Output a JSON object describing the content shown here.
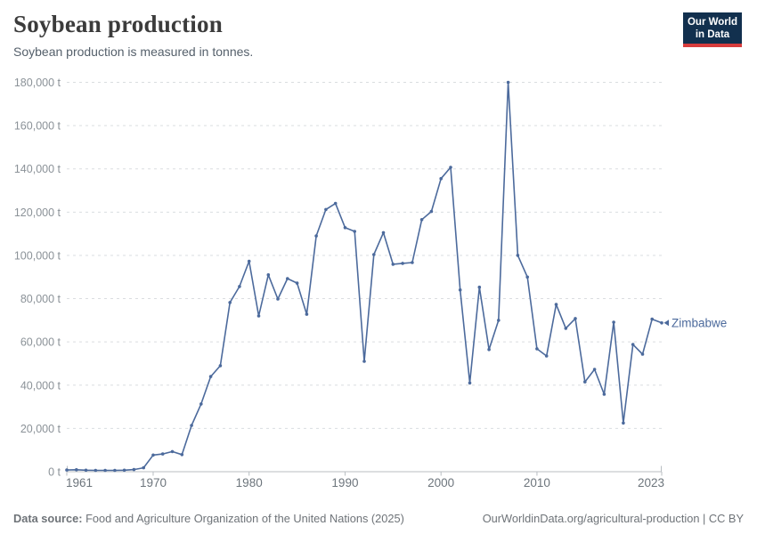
{
  "header": {
    "title": "Soybean production",
    "subtitle": "Soybean production is measured in tonnes.",
    "logo": {
      "line1": "Our World",
      "line2": "in Data"
    }
  },
  "footer": {
    "source_label": "Data source:",
    "source_text": " Food and Agriculture Organization of the United Nations (2025)",
    "link_text": "OurWorldinData.org/agricultural-production | CC BY"
  },
  "colors": {
    "series_blue": "#4C6A9C",
    "logo_navy": "#12304e",
    "logo_red": "#d73c3c",
    "gridline": "#dadde0",
    "axis_line": "#b8bec2",
    "y_label": "#8b9298",
    "x_label": "#6d757c"
  },
  "chart_data": {
    "type": "line",
    "title": "Soybean production",
    "subtitle": "Soybean production is measured in tonnes.",
    "unit": "t",
    "xlim": [
      1961,
      2023
    ],
    "ylim": [
      0,
      180000
    ],
    "x_ticks": [
      1961,
      1970,
      1980,
      1990,
      2000,
      2010,
      2023
    ],
    "y_ticks": [
      0,
      20000,
      40000,
      60000,
      80000,
      100000,
      120000,
      140000,
      160000,
      180000
    ],
    "grid": "horizontal-dashed",
    "legend": "end-of-line-label",
    "series": [
      {
        "name": "Zimbabwe",
        "color": "#4C6A9C",
        "x": [
          1961,
          1962,
          1963,
          1964,
          1965,
          1966,
          1967,
          1968,
          1969,
          1970,
          1971,
          1972,
          1973,
          1974,
          1975,
          1976,
          1977,
          1978,
          1979,
          1980,
          1981,
          1982,
          1983,
          1984,
          1985,
          1986,
          1987,
          1988,
          1989,
          1990,
          1991,
          1992,
          1993,
          1994,
          1995,
          1996,
          1997,
          1998,
          1999,
          2000,
          2001,
          2002,
          2003,
          2004,
          2005,
          2006,
          2007,
          2008,
          2009,
          2010,
          2011,
          2012,
          2013,
          2014,
          2015,
          2016,
          2017,
          2018,
          2019,
          2020,
          2021,
          2022,
          2023
        ],
        "values": [
          800,
          900,
          700,
          600,
          600,
          600,
          700,
          1000,
          1800,
          7700,
          8200,
          9300,
          7900,
          21400,
          31300,
          44000,
          49000,
          78200,
          85600,
          97300,
          72000,
          91000,
          79800,
          89300,
          87200,
          72800,
          109000,
          121200,
          124000,
          112800,
          111100,
          51000,
          100400,
          110500,
          95900,
          96300,
          96700,
          116500,
          120300,
          135500,
          140700,
          84000,
          41000,
          85300,
          56500,
          70000,
          180000,
          100000,
          90000,
          56800,
          53500,
          77300,
          66300,
          70800,
          41500,
          47300,
          35800,
          69100,
          22500,
          58800,
          54300,
          70500,
          68800
        ]
      }
    ]
  }
}
